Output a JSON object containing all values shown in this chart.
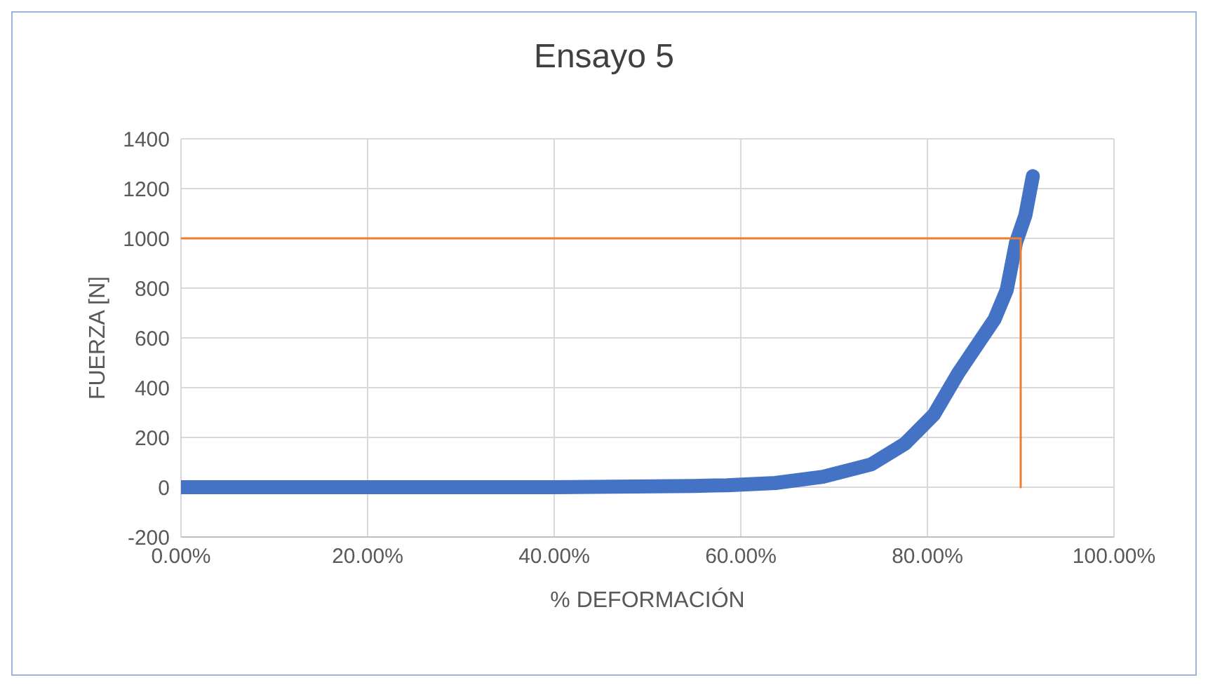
{
  "chart_data": {
    "type": "line",
    "title": "Ensayo 5",
    "xlabel": "% DEFORMACIÓN",
    "ylabel": "FUERZA [N]",
    "xlim": [
      0,
      1
    ],
    "xticks": [
      {
        "value": 0,
        "label": "0.00%"
      },
      {
        "value": 0.2,
        "label": "20.00%"
      },
      {
        "value": 0.4,
        "label": "40.00%"
      },
      {
        "value": 0.6,
        "label": "60.00%"
      },
      {
        "value": 0.8,
        "label": "80.00%"
      },
      {
        "value": 1,
        "label": "100.00%"
      }
    ],
    "ylim": [
      -200,
      1400
    ],
    "yticks": [
      -200,
      0,
      200,
      400,
      600,
      800,
      1000,
      1200,
      1400
    ],
    "grid": true,
    "legend": false,
    "marker": "none",
    "line_style": "solid",
    "series": [
      {
        "color": "#4472c4",
        "x": [
          0,
          0.2,
          0.4,
          0.55,
          0.585,
          0.637,
          0.688,
          0.74,
          0.776,
          0.807,
          0.833,
          0.854,
          0.872,
          0.885,
          0.895,
          0.905,
          0.913
        ],
        "values": [
          0,
          0,
          0,
          5,
          8,
          17,
          42,
          92,
          175,
          292,
          458,
          575,
          675,
          792,
          983,
          1092,
          1250
        ]
      },
      {
        "color": "#ed7d31",
        "x": [
          0,
          0.9,
          0.9
        ],
        "values": [
          1000,
          1000,
          0
        ]
      }
    ]
  }
}
